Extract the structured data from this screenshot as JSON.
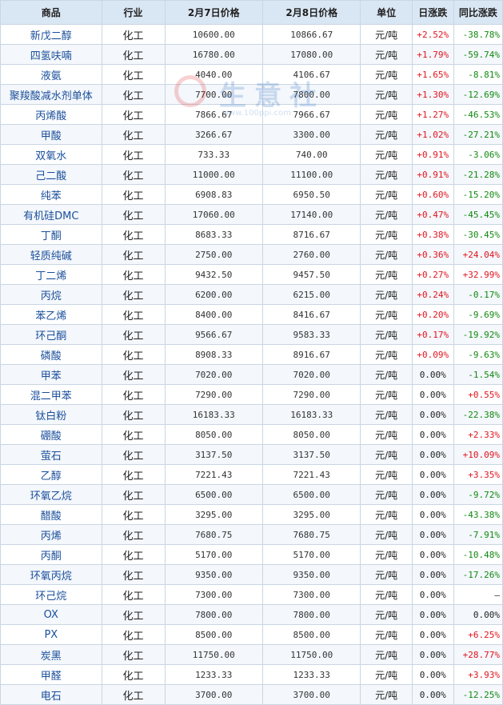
{
  "headers": [
    "商品",
    "行业",
    "2月7日价格",
    "2月8日价格",
    "单位",
    "日涨跌",
    "同比涨跌"
  ],
  "watermark": {
    "text": "生意社",
    "url": "www.100ppi.com"
  },
  "rows": [
    {
      "name": "新戊二醇",
      "industry": "化工",
      "p1": "10600.00",
      "p2": "10866.67",
      "unit": "元/吨",
      "day": "+2.52%",
      "yoy": "-38.78%"
    },
    {
      "name": "四氢呋喃",
      "industry": "化工",
      "p1": "16780.00",
      "p2": "17080.00",
      "unit": "元/吨",
      "day": "+1.79%",
      "yoy": "-59.74%"
    },
    {
      "name": "液氨",
      "industry": "化工",
      "p1": "4040.00",
      "p2": "4106.67",
      "unit": "元/吨",
      "day": "+1.65%",
      "yoy": "-8.81%"
    },
    {
      "name": "聚羧酸减水剂单体",
      "industry": "化工",
      "p1": "7700.00",
      "p2": "7800.00",
      "unit": "元/吨",
      "day": "+1.30%",
      "yoy": "-12.69%"
    },
    {
      "name": "丙烯酸",
      "industry": "化工",
      "p1": "7866.67",
      "p2": "7966.67",
      "unit": "元/吨",
      "day": "+1.27%",
      "yoy": "-46.53%"
    },
    {
      "name": "甲酸",
      "industry": "化工",
      "p1": "3266.67",
      "p2": "3300.00",
      "unit": "元/吨",
      "day": "+1.02%",
      "yoy": "-27.21%"
    },
    {
      "name": "双氧水",
      "industry": "化工",
      "p1": "733.33",
      "p2": "740.00",
      "unit": "元/吨",
      "day": "+0.91%",
      "yoy": "-3.06%"
    },
    {
      "name": "己二酸",
      "industry": "化工",
      "p1": "11000.00",
      "p2": "11100.00",
      "unit": "元/吨",
      "day": "+0.91%",
      "yoy": "-21.28%"
    },
    {
      "name": "纯苯",
      "industry": "化工",
      "p1": "6908.83",
      "p2": "6950.50",
      "unit": "元/吨",
      "day": "+0.60%",
      "yoy": "-15.20%"
    },
    {
      "name": "有机硅DMC",
      "industry": "化工",
      "p1": "17060.00",
      "p2": "17140.00",
      "unit": "元/吨",
      "day": "+0.47%",
      "yoy": "-45.45%"
    },
    {
      "name": "丁酮",
      "industry": "化工",
      "p1": "8683.33",
      "p2": "8716.67",
      "unit": "元/吨",
      "day": "+0.38%",
      "yoy": "-30.45%"
    },
    {
      "name": "轻质纯碱",
      "industry": "化工",
      "p1": "2750.00",
      "p2": "2760.00",
      "unit": "元/吨",
      "day": "+0.36%",
      "yoy": "+24.04%"
    },
    {
      "name": "丁二烯",
      "industry": "化工",
      "p1": "9432.50",
      "p2": "9457.50",
      "unit": "元/吨",
      "day": "+0.27%",
      "yoy": "+32.99%"
    },
    {
      "name": "丙烷",
      "industry": "化工",
      "p1": "6200.00",
      "p2": "6215.00",
      "unit": "元/吨",
      "day": "+0.24%",
      "yoy": "-0.17%"
    },
    {
      "name": "苯乙烯",
      "industry": "化工",
      "p1": "8400.00",
      "p2": "8416.67",
      "unit": "元/吨",
      "day": "+0.20%",
      "yoy": "-9.69%"
    },
    {
      "name": "环己酮",
      "industry": "化工",
      "p1": "9566.67",
      "p2": "9583.33",
      "unit": "元/吨",
      "day": "+0.17%",
      "yoy": "-19.92%"
    },
    {
      "name": "磷酸",
      "industry": "化工",
      "p1": "8908.33",
      "p2": "8916.67",
      "unit": "元/吨",
      "day": "+0.09%",
      "yoy": "-9.63%"
    },
    {
      "name": "甲苯",
      "industry": "化工",
      "p1": "7020.00",
      "p2": "7020.00",
      "unit": "元/吨",
      "day": "0.00%",
      "yoy": "-1.54%"
    },
    {
      "name": "混二甲苯",
      "industry": "化工",
      "p1": "7290.00",
      "p2": "7290.00",
      "unit": "元/吨",
      "day": "0.00%",
      "yoy": "+0.55%"
    },
    {
      "name": "钛白粉",
      "industry": "化工",
      "p1": "16183.33",
      "p2": "16183.33",
      "unit": "元/吨",
      "day": "0.00%",
      "yoy": "-22.38%"
    },
    {
      "name": "硼酸",
      "industry": "化工",
      "p1": "8050.00",
      "p2": "8050.00",
      "unit": "元/吨",
      "day": "0.00%",
      "yoy": "+2.33%"
    },
    {
      "name": "萤石",
      "industry": "化工",
      "p1": "3137.50",
      "p2": "3137.50",
      "unit": "元/吨",
      "day": "0.00%",
      "yoy": "+10.09%"
    },
    {
      "name": "乙醇",
      "industry": "化工",
      "p1": "7221.43",
      "p2": "7221.43",
      "unit": "元/吨",
      "day": "0.00%",
      "yoy": "+3.35%"
    },
    {
      "name": "环氧乙烷",
      "industry": "化工",
      "p1": "6500.00",
      "p2": "6500.00",
      "unit": "元/吨",
      "day": "0.00%",
      "yoy": "-9.72%"
    },
    {
      "name": "醋酸",
      "industry": "化工",
      "p1": "3295.00",
      "p2": "3295.00",
      "unit": "元/吨",
      "day": "0.00%",
      "yoy": "-43.38%"
    },
    {
      "name": "丙烯",
      "industry": "化工",
      "p1": "7680.75",
      "p2": "7680.75",
      "unit": "元/吨",
      "day": "0.00%",
      "yoy": "-7.91%"
    },
    {
      "name": "丙酮",
      "industry": "化工",
      "p1": "5170.00",
      "p2": "5170.00",
      "unit": "元/吨",
      "day": "0.00%",
      "yoy": "-10.48%"
    },
    {
      "name": "环氧丙烷",
      "industry": "化工",
      "p1": "9350.00",
      "p2": "9350.00",
      "unit": "元/吨",
      "day": "0.00%",
      "yoy": "-17.26%"
    },
    {
      "name": "环己烷",
      "industry": "化工",
      "p1": "7300.00",
      "p2": "7300.00",
      "unit": "元/吨",
      "day": "0.00%",
      "yoy": "—"
    },
    {
      "name": "OX",
      "industry": "化工",
      "p1": "7800.00",
      "p2": "7800.00",
      "unit": "元/吨",
      "day": "0.00%",
      "yoy": "0.00%"
    },
    {
      "name": "PX",
      "industry": "化工",
      "p1": "8500.00",
      "p2": "8500.00",
      "unit": "元/吨",
      "day": "0.00%",
      "yoy": "+6.25%"
    },
    {
      "name": "炭黑",
      "industry": "化工",
      "p1": "11750.00",
      "p2": "11750.00",
      "unit": "元/吨",
      "day": "0.00%",
      "yoy": "+28.77%"
    },
    {
      "name": "甲醛",
      "industry": "化工",
      "p1": "1233.33",
      "p2": "1233.33",
      "unit": "元/吨",
      "day": "0.00%",
      "yoy": "+3.93%"
    },
    {
      "name": "电石",
      "industry": "化工",
      "p1": "3700.00",
      "p2": "3700.00",
      "unit": "元/吨",
      "day": "0.00%",
      "yoy": "-12.25%"
    }
  ],
  "colors": {
    "up": "#e0141e",
    "down": "#108a10",
    "header_bg": "#d9e6f3",
    "name_link": "#1a4f9c",
    "border": "#c9d6e3"
  }
}
